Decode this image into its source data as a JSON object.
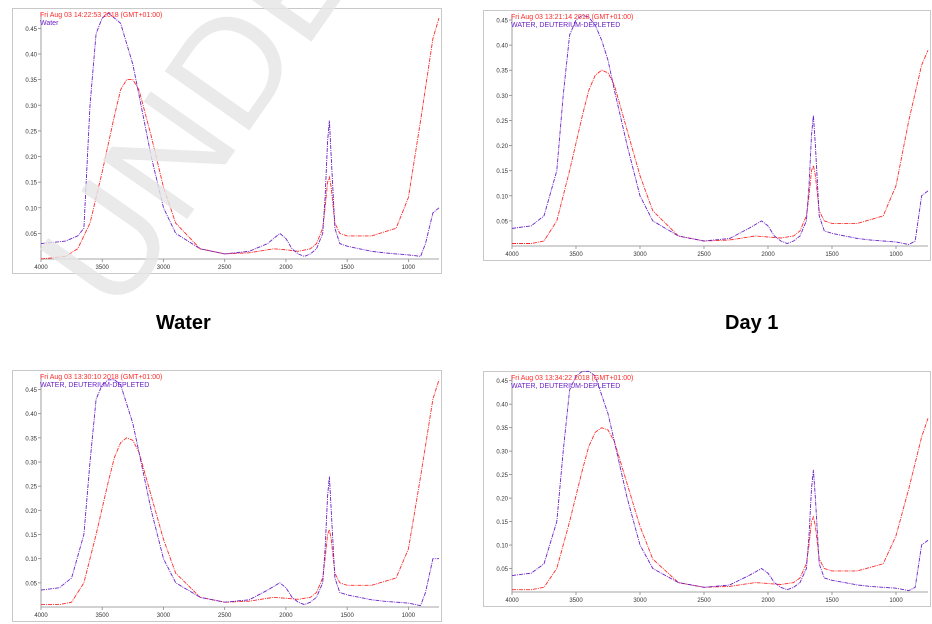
{
  "colors": {
    "red_series": "#ff2a2a",
    "purple_series": "#6a22c8",
    "axis": "#888888",
    "watermark": "#e6e6e6"
  },
  "captions": [
    "Water",
    "Day 1"
  ],
  "watermark_text": "UNDER",
  "chart_data": [
    {
      "type": "line",
      "timestamp": "Fri Aug 03 14:22:53 2018 (GMT+01:00)",
      "sample_label": "Water",
      "xlim": [
        4000,
        750
      ],
      "ylim": [
        0,
        0.48
      ],
      "x_ticks": [
        "4000",
        "3500",
        "3000",
        "2500",
        "2000",
        "1500",
        "1000"
      ],
      "y_ticks": [
        "0.05",
        "0.10",
        "0.15",
        "0.20",
        "0.25",
        "0.30",
        "0.35",
        "0.40",
        "0.45"
      ],
      "series": [
        {
          "color": "red",
          "x": [
            4000,
            3800,
            3700,
            3600,
            3500,
            3400,
            3350,
            3300,
            3250,
            3200,
            3100,
            3000,
            2900,
            2700,
            2500,
            2300,
            2100,
            2000,
            1900,
            1800,
            1750,
            1700,
            1680,
            1660,
            1645,
            1630,
            1600,
            1560,
            1500,
            1300,
            1100,
            1000,
            900,
            800,
            750
          ],
          "y": [
            0.0,
            0.005,
            0.02,
            0.07,
            0.17,
            0.28,
            0.33,
            0.35,
            0.35,
            0.33,
            0.24,
            0.14,
            0.07,
            0.02,
            0.01,
            0.012,
            0.02,
            0.018,
            0.015,
            0.02,
            0.03,
            0.06,
            0.1,
            0.15,
            0.16,
            0.14,
            0.07,
            0.05,
            0.045,
            0.045,
            0.06,
            0.12,
            0.27,
            0.43,
            0.47
          ]
        },
        {
          "color": "purple",
          "x": [
            4000,
            3800,
            3700,
            3650,
            3600,
            3550,
            3500,
            3450,
            3400,
            3350,
            3300,
            3250,
            3200,
            3100,
            3000,
            2900,
            2700,
            2500,
            2300,
            2150,
            2050,
            2000,
            1950,
            1900,
            1850,
            1800,
            1750,
            1700,
            1680,
            1660,
            1645,
            1630,
            1600,
            1560,
            1500,
            1400,
            1300,
            1200,
            1100,
            1000,
            900,
            860,
            800,
            750
          ],
          "y": [
            0.03,
            0.035,
            0.045,
            0.06,
            0.3,
            0.44,
            0.47,
            0.48,
            0.47,
            0.46,
            0.42,
            0.38,
            0.32,
            0.2,
            0.1,
            0.05,
            0.02,
            0.01,
            0.015,
            0.03,
            0.05,
            0.04,
            0.02,
            0.01,
            0.005,
            0.01,
            0.02,
            0.05,
            0.12,
            0.23,
            0.27,
            0.2,
            0.06,
            0.03,
            0.025,
            0.02,
            0.015,
            0.012,
            0.01,
            0.008,
            0.005,
            0.03,
            0.09,
            0.1
          ]
        }
      ]
    },
    {
      "type": "line",
      "timestamp": "Fri Aug 03 13:21:14 2018 (GMT+01:00)",
      "sample_label": "WATER, DEUTERIUM-DEPLETED",
      "xlim": [
        4000,
        750
      ],
      "ylim": [
        0,
        0.46
      ],
      "x_ticks": [
        "4000",
        "3500",
        "3000",
        "2500",
        "2000",
        "1500",
        "1000"
      ],
      "y_ticks": [
        "0.05",
        "0.10",
        "0.15",
        "0.20",
        "0.25",
        "0.30",
        "0.35",
        "0.40",
        "0.45"
      ],
      "series": [
        {
          "color": "red",
          "x": [
            4000,
            3850,
            3750,
            3650,
            3550,
            3450,
            3400,
            3350,
            3300,
            3250,
            3200,
            3100,
            3000,
            2900,
            2700,
            2500,
            2300,
            2100,
            2000,
            1900,
            1800,
            1750,
            1700,
            1680,
            1660,
            1645,
            1630,
            1600,
            1560,
            1500,
            1300,
            1100,
            1000,
            900,
            800,
            750
          ],
          "y": [
            0.005,
            0.005,
            0.01,
            0.05,
            0.15,
            0.26,
            0.31,
            0.34,
            0.35,
            0.345,
            0.32,
            0.23,
            0.14,
            0.07,
            0.02,
            0.01,
            0.012,
            0.02,
            0.018,
            0.016,
            0.02,
            0.03,
            0.06,
            0.1,
            0.15,
            0.16,
            0.14,
            0.07,
            0.05,
            0.045,
            0.045,
            0.06,
            0.12,
            0.25,
            0.36,
            0.39
          ]
        },
        {
          "color": "purple",
          "x": [
            4000,
            3850,
            3750,
            3650,
            3600,
            3550,
            3500,
            3450,
            3400,
            3350,
            3300,
            3250,
            3200,
            3100,
            3000,
            2900,
            2700,
            2500,
            2300,
            2150,
            2050,
            2000,
            1950,
            1900,
            1850,
            1800,
            1750,
            1700,
            1680,
            1660,
            1645,
            1630,
            1600,
            1560,
            1500,
            1400,
            1300,
            1200,
            1100,
            1000,
            900,
            850,
            800,
            750
          ],
          "y": [
            0.035,
            0.04,
            0.06,
            0.15,
            0.3,
            0.42,
            0.45,
            0.46,
            0.455,
            0.44,
            0.41,
            0.37,
            0.31,
            0.2,
            0.1,
            0.05,
            0.02,
            0.01,
            0.015,
            0.035,
            0.05,
            0.04,
            0.02,
            0.01,
            0.005,
            0.01,
            0.02,
            0.05,
            0.12,
            0.22,
            0.26,
            0.2,
            0.06,
            0.03,
            0.025,
            0.02,
            0.015,
            0.012,
            0.01,
            0.008,
            0.003,
            0.01,
            0.1,
            0.11
          ]
        }
      ]
    },
    {
      "type": "line",
      "timestamp": "Fri Aug 03 13:30:10 2018 (GMT+01:00)",
      "sample_label": "WATER, DEUTERIUM-DEPLETED",
      "xlim": [
        4000,
        750
      ],
      "ylim": [
        0,
        0.48
      ],
      "x_ticks": [
        "4000",
        "3500",
        "3000",
        "2500",
        "2000",
        "1500",
        "1000"
      ],
      "y_ticks": [
        "0.05",
        "0.10",
        "0.15",
        "0.20",
        "0.25",
        "0.30",
        "0.35",
        "0.40",
        "0.45"
      ],
      "series": [
        {
          "color": "red",
          "x": [
            4000,
            3850,
            3750,
            3650,
            3550,
            3450,
            3400,
            3350,
            3300,
            3250,
            3200,
            3100,
            3000,
            2900,
            2700,
            2500,
            2300,
            2100,
            2000,
            1900,
            1800,
            1750,
            1700,
            1680,
            1660,
            1645,
            1630,
            1600,
            1560,
            1500,
            1300,
            1100,
            1000,
            900,
            800,
            750
          ],
          "y": [
            0.005,
            0.005,
            0.01,
            0.05,
            0.15,
            0.26,
            0.31,
            0.34,
            0.35,
            0.345,
            0.32,
            0.23,
            0.14,
            0.07,
            0.02,
            0.01,
            0.012,
            0.02,
            0.018,
            0.016,
            0.02,
            0.03,
            0.06,
            0.1,
            0.15,
            0.16,
            0.14,
            0.07,
            0.05,
            0.045,
            0.045,
            0.06,
            0.12,
            0.27,
            0.43,
            0.47
          ]
        },
        {
          "color": "purple",
          "x": [
            4000,
            3850,
            3750,
            3650,
            3600,
            3550,
            3500,
            3450,
            3400,
            3350,
            3300,
            3250,
            3200,
            3100,
            3000,
            2900,
            2700,
            2500,
            2300,
            2150,
            2050,
            2000,
            1950,
            1900,
            1850,
            1800,
            1750,
            1700,
            1680,
            1660,
            1645,
            1630,
            1600,
            1560,
            1500,
            1400,
            1300,
            1200,
            1100,
            1000,
            900,
            860,
            800,
            750
          ],
          "y": [
            0.035,
            0.04,
            0.06,
            0.15,
            0.3,
            0.43,
            0.46,
            0.47,
            0.47,
            0.46,
            0.42,
            0.38,
            0.32,
            0.2,
            0.1,
            0.05,
            0.02,
            0.01,
            0.015,
            0.035,
            0.05,
            0.04,
            0.02,
            0.01,
            0.005,
            0.01,
            0.02,
            0.05,
            0.12,
            0.23,
            0.27,
            0.2,
            0.06,
            0.03,
            0.025,
            0.02,
            0.015,
            0.012,
            0.01,
            0.008,
            0.003,
            0.03,
            0.1,
            0.1
          ]
        }
      ]
    },
    {
      "type": "line",
      "timestamp": "Fri Aug 03 13:34:22 2018 (GMT+01:00)",
      "sample_label": "WATER, DEUTERIUM-DEPLETED",
      "xlim": [
        4000,
        750
      ],
      "ylim": [
        0,
        0.46
      ],
      "x_ticks": [
        "4000",
        "3500",
        "3000",
        "2500",
        "2000",
        "1500",
        "1000"
      ],
      "y_ticks": [
        "0.05",
        "0.10",
        "0.15",
        "0.20",
        "0.25",
        "0.30",
        "0.35",
        "0.40",
        "0.45"
      ],
      "series": [
        {
          "color": "red",
          "x": [
            4000,
            3850,
            3750,
            3650,
            3550,
            3450,
            3400,
            3350,
            3300,
            3250,
            3200,
            3100,
            3000,
            2900,
            2700,
            2500,
            2300,
            2100,
            2000,
            1900,
            1800,
            1750,
            1700,
            1680,
            1660,
            1645,
            1630,
            1600,
            1560,
            1500,
            1300,
            1100,
            1000,
            900,
            800,
            750
          ],
          "y": [
            0.005,
            0.005,
            0.01,
            0.05,
            0.15,
            0.26,
            0.31,
            0.34,
            0.35,
            0.345,
            0.32,
            0.23,
            0.14,
            0.07,
            0.02,
            0.01,
            0.012,
            0.02,
            0.018,
            0.016,
            0.02,
            0.03,
            0.06,
            0.1,
            0.15,
            0.16,
            0.14,
            0.07,
            0.05,
            0.045,
            0.045,
            0.06,
            0.12,
            0.22,
            0.33,
            0.37
          ]
        },
        {
          "color": "purple",
          "x": [
            4000,
            3850,
            3750,
            3650,
            3600,
            3550,
            3500,
            3450,
            3400,
            3350,
            3300,
            3250,
            3200,
            3100,
            3000,
            2900,
            2700,
            2500,
            2300,
            2150,
            2050,
            2000,
            1950,
            1900,
            1850,
            1800,
            1750,
            1700,
            1680,
            1660,
            1645,
            1630,
            1600,
            1560,
            1500,
            1400,
            1300,
            1200,
            1100,
            1000,
            900,
            850,
            800,
            750
          ],
          "y": [
            0.035,
            0.04,
            0.06,
            0.15,
            0.3,
            0.43,
            0.46,
            0.47,
            0.47,
            0.46,
            0.42,
            0.38,
            0.32,
            0.2,
            0.1,
            0.05,
            0.02,
            0.01,
            0.015,
            0.035,
            0.05,
            0.04,
            0.02,
            0.01,
            0.005,
            0.01,
            0.02,
            0.05,
            0.12,
            0.22,
            0.26,
            0.2,
            0.06,
            0.03,
            0.025,
            0.02,
            0.015,
            0.012,
            0.01,
            0.008,
            0.003,
            0.01,
            0.1,
            0.11
          ]
        }
      ]
    }
  ]
}
